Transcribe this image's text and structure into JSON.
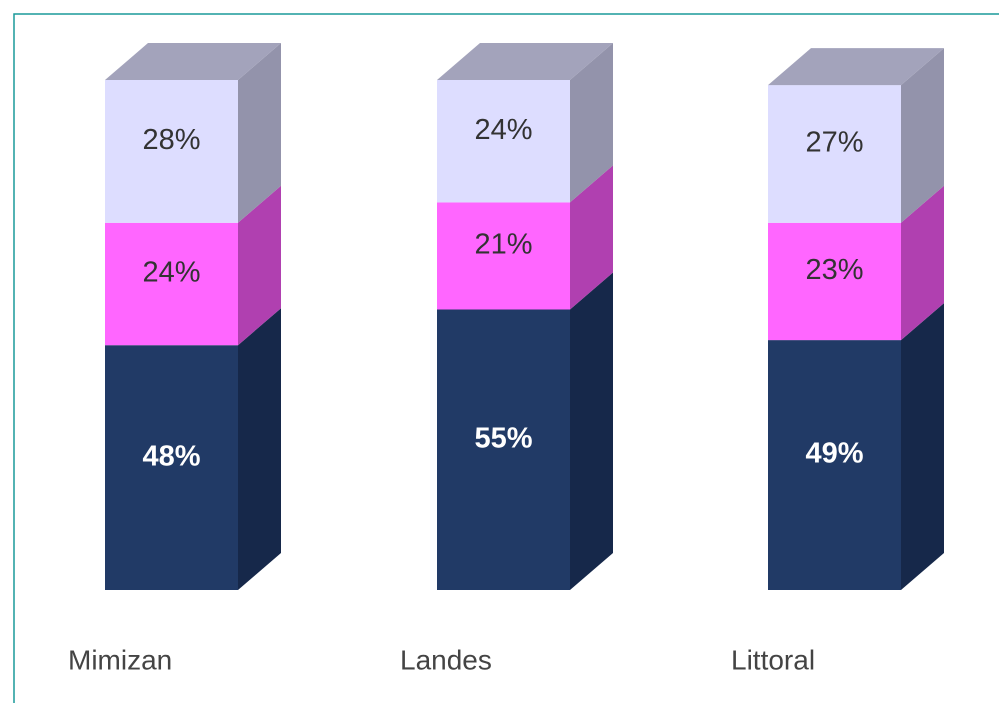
{
  "chart_data": {
    "type": "stacked_bar_3d",
    "categories": [
      "Mimizan",
      "Landes",
      "Littoral"
    ],
    "series": [
      {
        "color": "#213a66",
        "side_color": "#16284a",
        "label_color": "#ffffff",
        "values": [
          48,
          55,
          49
        ],
        "value_labels": [
          "48%",
          "55%",
          "49%"
        ]
      },
      {
        "color": "#ff66ff",
        "side_color": "#b040b0",
        "label_color": "#333333",
        "values": [
          24,
          21,
          23
        ],
        "value_labels": [
          "24%",
          "21%",
          "23%"
        ]
      },
      {
        "color": "#ddddff",
        "side_color": "#9393ab",
        "top_color": "#a3a3bb",
        "label_color": "#333333",
        "values": [
          28,
          24,
          27
        ],
        "value_labels": [
          "28%",
          "24%",
          "27%"
        ]
      }
    ]
  }
}
